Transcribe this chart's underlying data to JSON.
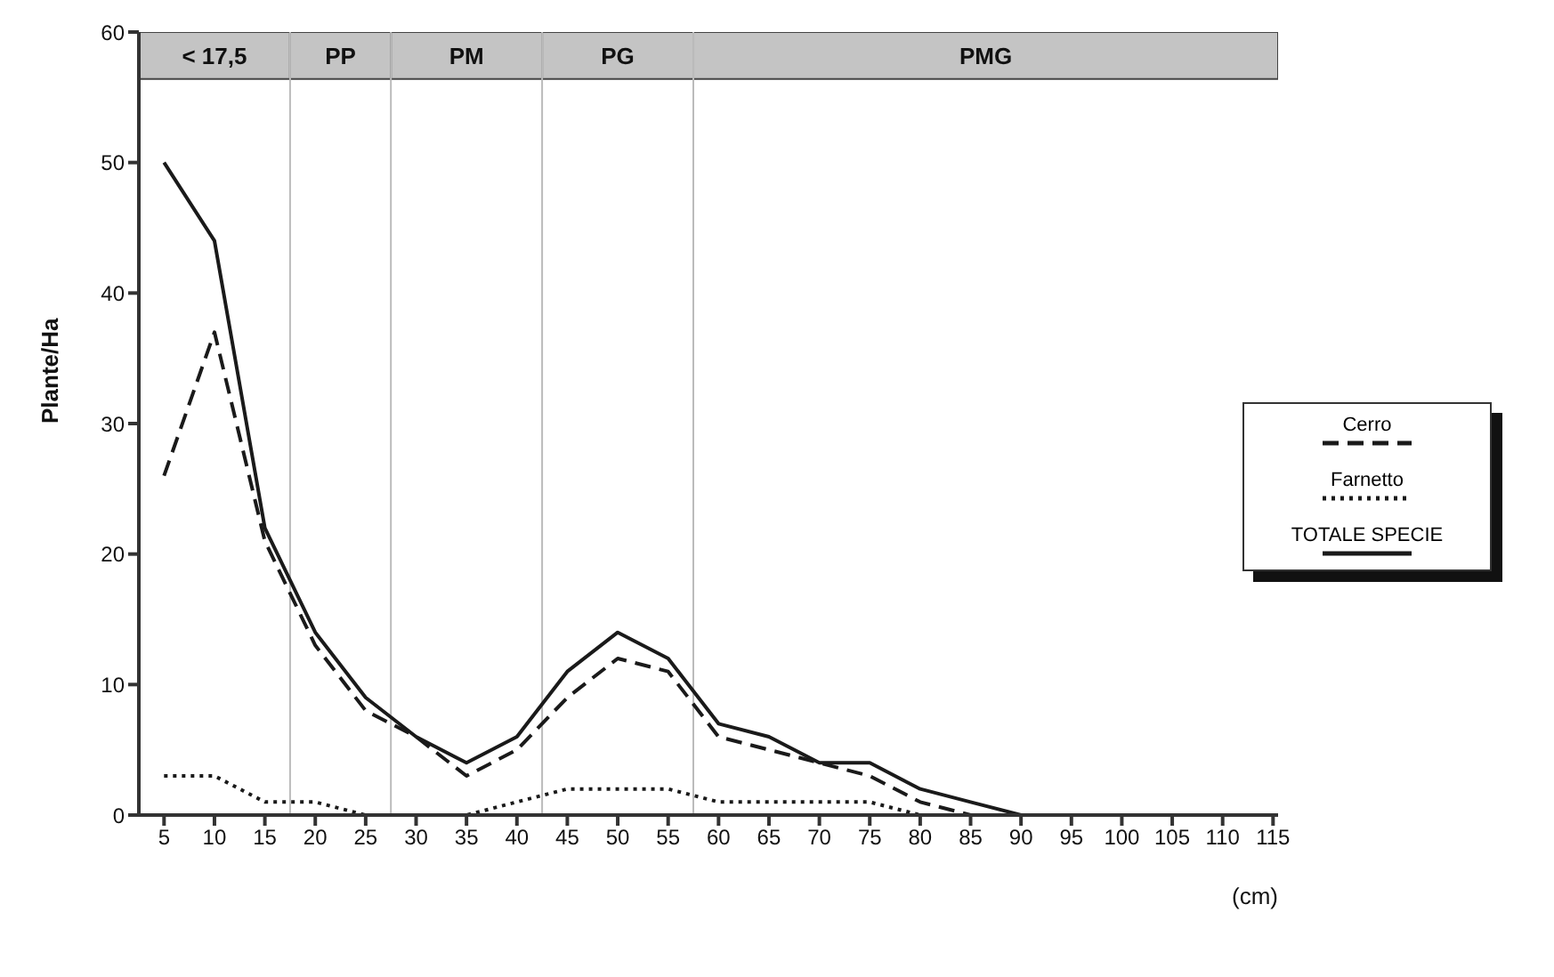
{
  "chart_data": {
    "type": "line",
    "xlabel": "(cm)",
    "ylabel": "Plante/Ha",
    "x": [
      5,
      10,
      15,
      20,
      25,
      30,
      35,
      40,
      45,
      50,
      55,
      60,
      65,
      70,
      75,
      80,
      85,
      90
    ],
    "series": [
      {
        "name": "Cerro",
        "color": "#1a1a1a",
        "line_style": "dashed",
        "values": [
          26,
          37,
          21,
          13,
          8,
          6,
          3,
          5,
          9,
          12,
          11,
          6,
          5,
          4,
          3,
          1,
          0,
          0
        ]
      },
      {
        "name": "Farnetto",
        "color": "#1a1a1a",
        "line_style": "dotted",
        "values": [
          3,
          3,
          1,
          1,
          0,
          0,
          0,
          1,
          2,
          2,
          2,
          1,
          1,
          1,
          1,
          0,
          0,
          0
        ]
      },
      {
        "name": "TOTALE SPECIE",
        "color": "#1a1a1a",
        "line_style": "solid",
        "values": [
          50,
          44,
          22,
          14,
          9,
          6,
          4,
          6,
          11,
          14,
          12,
          7,
          6,
          4,
          4,
          2,
          1,
          0
        ]
      }
    ],
    "bands": [
      {
        "axis": "x",
        "from": 2.5,
        "to": 17.5,
        "label": "< 17,5",
        "color": "#c4c4c4"
      },
      {
        "axis": "x",
        "from": 17.5,
        "to": 27.5,
        "label": "PP",
        "color": "#c4c4c4"
      },
      {
        "axis": "x",
        "from": 27.5,
        "to": 42.5,
        "label": "PM",
        "color": "#c4c4c4"
      },
      {
        "axis": "x",
        "from": 42.5,
        "to": 57.5,
        "label": "PG",
        "color": "#c4c4c4"
      },
      {
        "axis": "x",
        "from": 57.5,
        "to": 115.5,
        "label": "PMG",
        "color": "#c4c4c4"
      }
    ],
    "xlim": [
      2.5,
      115.5
    ],
    "xticks": [
      5,
      10,
      15,
      20,
      25,
      30,
      35,
      40,
      45,
      50,
      55,
      60,
      65,
      70,
      75,
      80,
      85,
      90,
      95,
      100,
      105,
      110,
      115
    ],
    "ylim": [
      0,
      60
    ],
    "yticks": [
      0,
      10,
      20,
      30,
      40,
      50,
      60
    ],
    "grid": false,
    "legend": "right",
    "marker": "none"
  }
}
